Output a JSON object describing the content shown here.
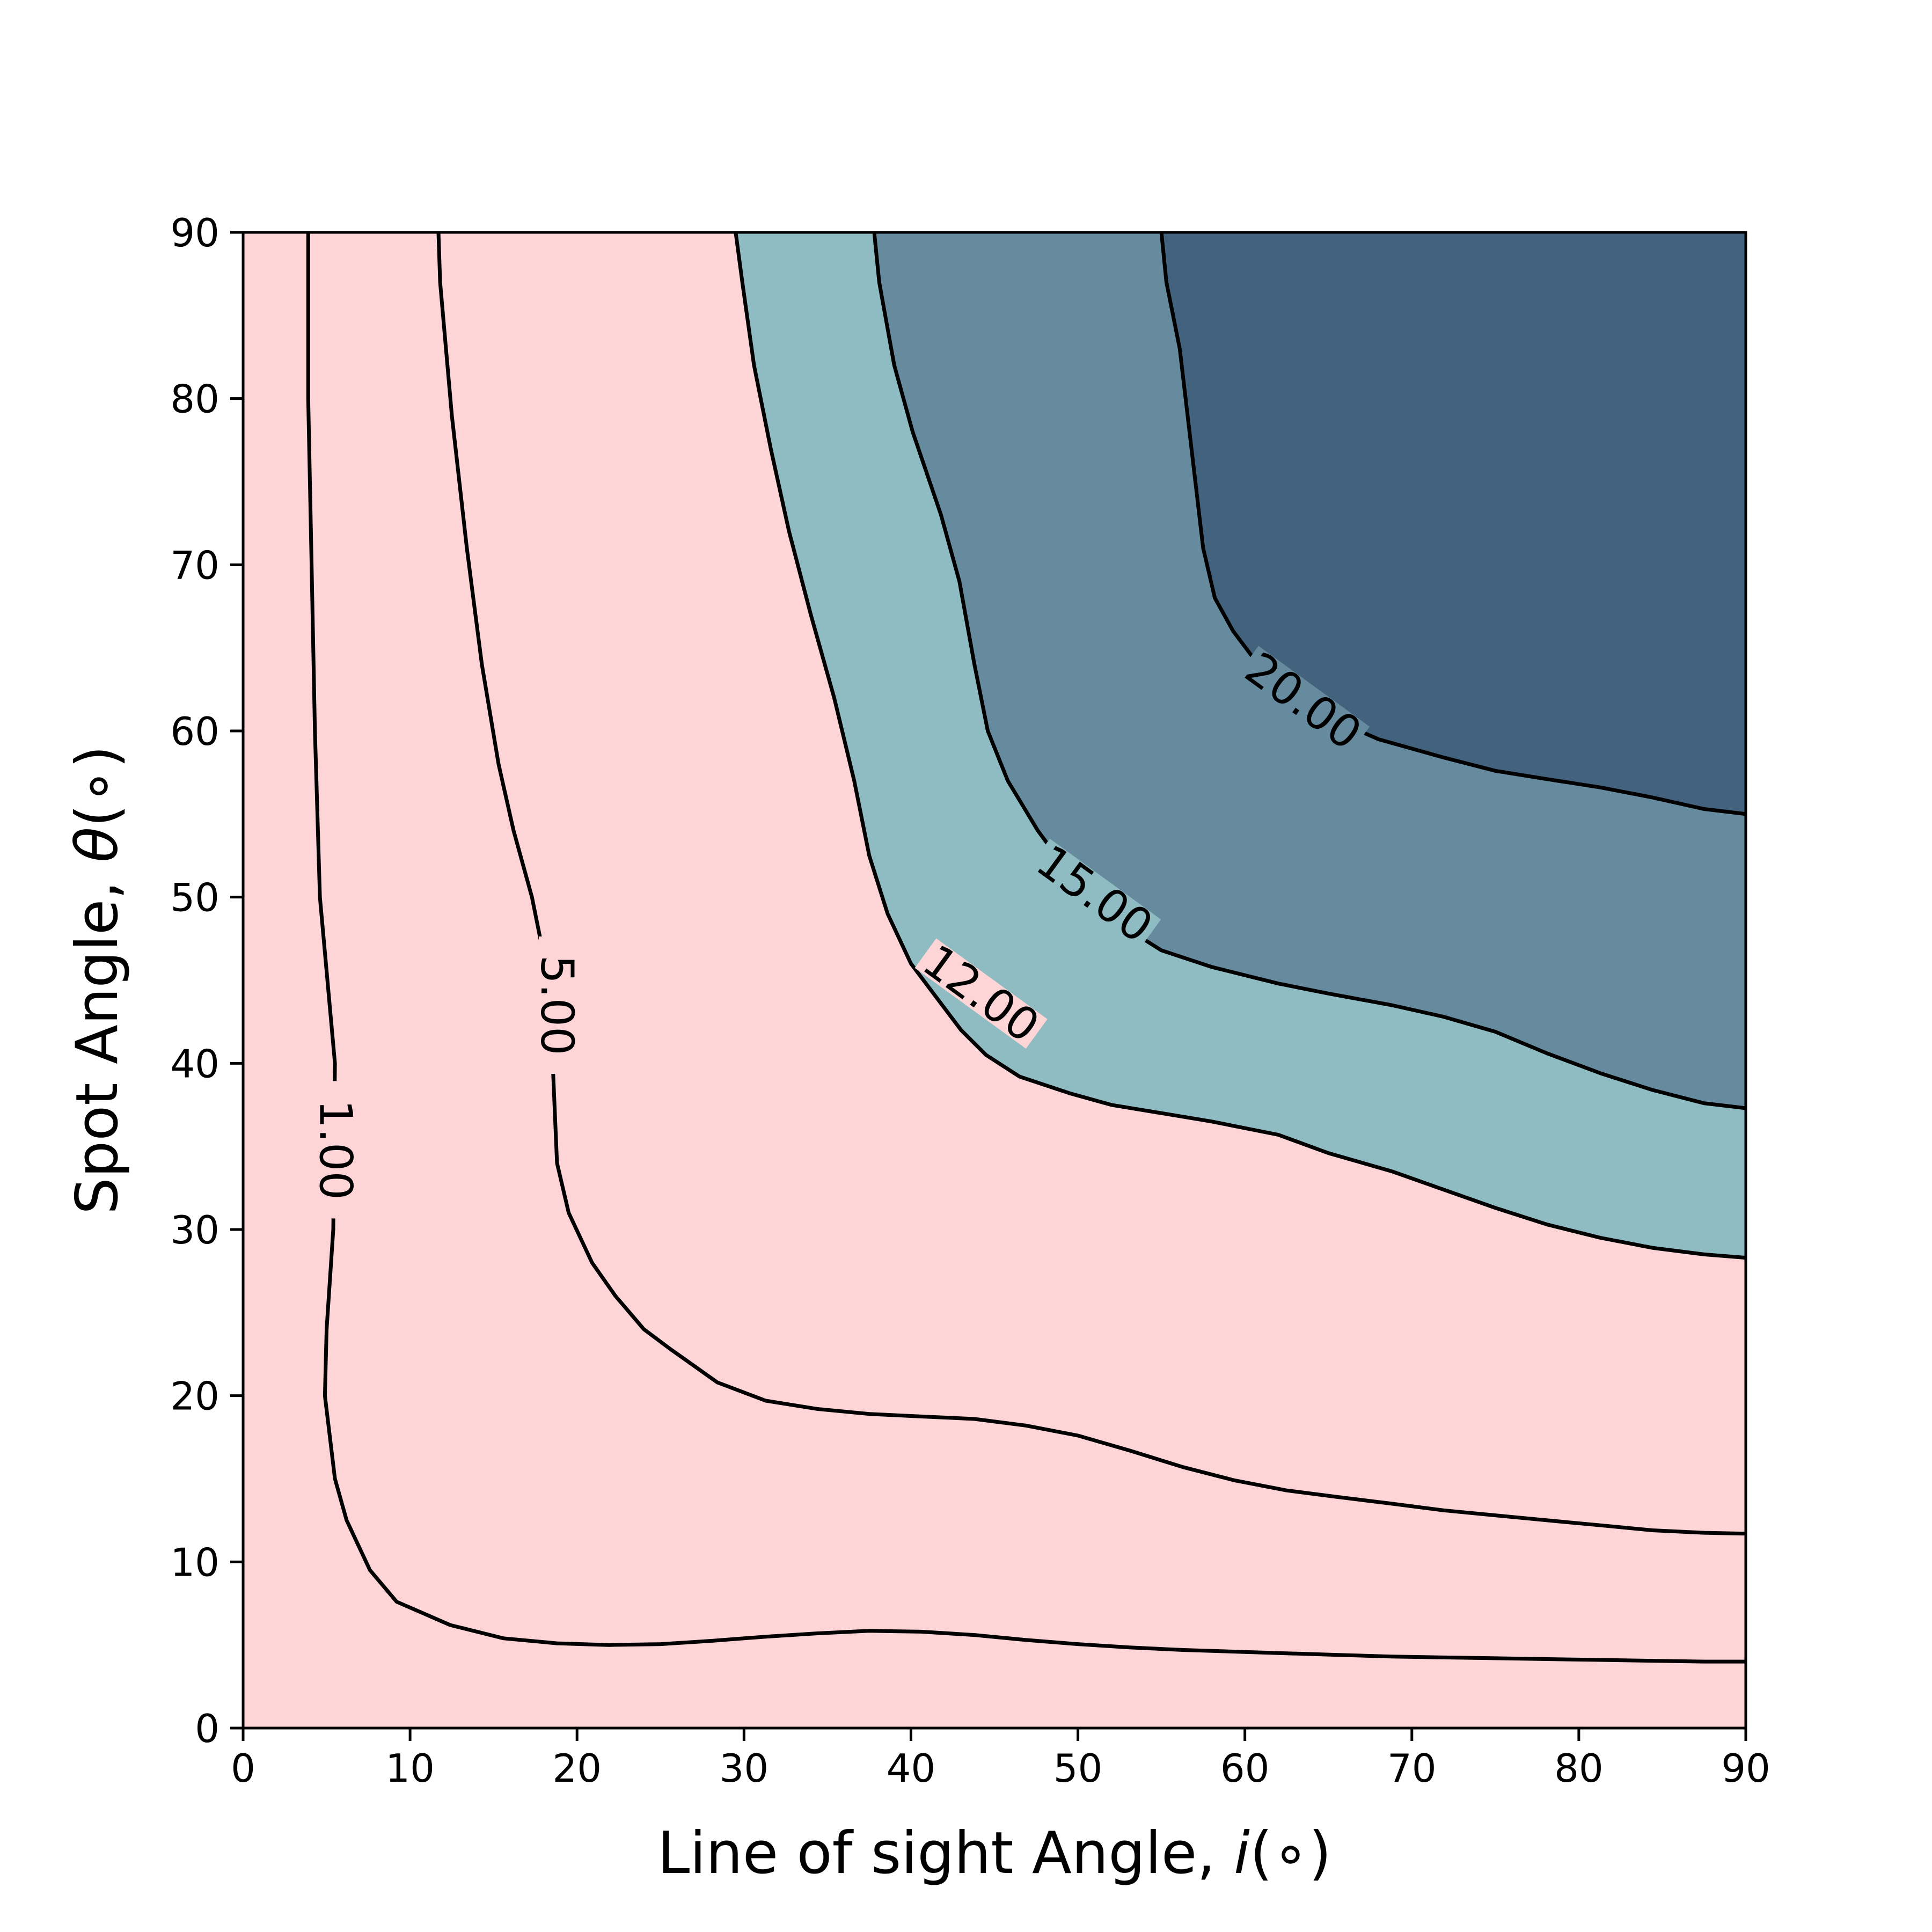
{
  "chart_data": {
    "type": "contour",
    "xlabel_prefix": "Line of sight Angle, ",
    "xlabel_var": "i",
    "xlabel_unit": "(∘)",
    "ylabel_prefix": "Spot Angle, ",
    "ylabel_var": "θ",
    "ylabel_unit": "(∘)",
    "xlim": [
      0,
      90
    ],
    "ylim": [
      0,
      90
    ],
    "xticks": [
      0,
      10,
      20,
      30,
      40,
      50,
      60,
      70,
      80,
      90
    ],
    "yticks": [
      0,
      10,
      20,
      30,
      40,
      50,
      60,
      70,
      80,
      90
    ],
    "grid": false,
    "fill_colors": {
      "below_12": "#fdd5d6",
      "12_to_15": "#8fbcc2",
      "15_to_20": "#678b9e",
      "above_20": "#43627e"
    },
    "line_color": "#000000",
    "levels": [
      {
        "value": 1.0,
        "label": "1.00",
        "points": [
          [
            3.9,
            90
          ],
          [
            3.9,
            80
          ],
          [
            4.1,
            70
          ],
          [
            4.3,
            60
          ],
          [
            4.6,
            50
          ],
          [
            5.5,
            40
          ],
          [
            5.4,
            30
          ],
          [
            5.0,
            24
          ],
          [
            4.9,
            20
          ],
          [
            5.5,
            15
          ],
          [
            6.2,
            12.5
          ],
          [
            7.6,
            9.5
          ],
          [
            9.2,
            7.6
          ],
          [
            12.4,
            6.2
          ],
          [
            15.6,
            5.4
          ],
          [
            18.8,
            5.1
          ],
          [
            21.9,
            5.0
          ],
          [
            25.0,
            5.05
          ],
          [
            28.1,
            5.25
          ],
          [
            31.3,
            5.5
          ],
          [
            34.4,
            5.7
          ],
          [
            37.5,
            5.85
          ],
          [
            40.6,
            5.8
          ],
          [
            43.8,
            5.6
          ],
          [
            46.9,
            5.3
          ],
          [
            50.0,
            5.05
          ],
          [
            53.1,
            4.85
          ],
          [
            56.3,
            4.7
          ],
          [
            59.4,
            4.6
          ],
          [
            62.5,
            4.5
          ],
          [
            65.6,
            4.4
          ],
          [
            68.8,
            4.3
          ],
          [
            71.9,
            4.25
          ],
          [
            75.0,
            4.2
          ],
          [
            78.1,
            4.15
          ],
          [
            81.3,
            4.1
          ],
          [
            84.4,
            4.05
          ],
          [
            87.5,
            4.0
          ],
          [
            90.0,
            4.0
          ]
        ]
      },
      {
        "value": 5.0,
        "label": "5.00",
        "points": [
          [
            11.7,
            90
          ],
          [
            11.8,
            87
          ],
          [
            12.5,
            79
          ],
          [
            13.4,
            71
          ],
          [
            14.3,
            64
          ],
          [
            15.3,
            58
          ],
          [
            16.2,
            54
          ],
          [
            17.3,
            50
          ],
          [
            17.9,
            47
          ],
          [
            18.5,
            44
          ],
          [
            18.5,
            41
          ],
          [
            18.8,
            34
          ],
          [
            19.5,
            31
          ],
          [
            20.9,
            28
          ],
          [
            22.3,
            26
          ],
          [
            24.0,
            24
          ],
          [
            25.6,
            22.8
          ],
          [
            27.0,
            21.8
          ],
          [
            28.4,
            20.8
          ],
          [
            31.3,
            19.7
          ],
          [
            34.4,
            19.2
          ],
          [
            37.5,
            18.9
          ],
          [
            40.6,
            18.75
          ],
          [
            43.8,
            18.6
          ],
          [
            46.9,
            18.2
          ],
          [
            50.0,
            17.6
          ],
          [
            53.1,
            16.7
          ],
          [
            56.3,
            15.7
          ],
          [
            59.4,
            14.9
          ],
          [
            62.5,
            14.3
          ],
          [
            65.6,
            13.9
          ],
          [
            68.8,
            13.5
          ],
          [
            71.9,
            13.1
          ],
          [
            75.0,
            12.8
          ],
          [
            78.1,
            12.5
          ],
          [
            81.3,
            12.2
          ],
          [
            84.4,
            11.9
          ],
          [
            87.5,
            11.75
          ],
          [
            90.0,
            11.7
          ]
        ]
      },
      {
        "value": 12.0,
        "label": "12.00",
        "points": [
          [
            29.5,
            90
          ],
          [
            29.9,
            87
          ],
          [
            30.6,
            82
          ],
          [
            31.6,
            77
          ],
          [
            32.7,
            72
          ],
          [
            34.0,
            67
          ],
          [
            35.4,
            62
          ],
          [
            36.6,
            57
          ],
          [
            37.5,
            52.5
          ],
          [
            38.6,
            49
          ],
          [
            40.0,
            46
          ],
          [
            41.5,
            44
          ],
          [
            43.0,
            42
          ],
          [
            44.5,
            40.5
          ],
          [
            46.5,
            39.2
          ],
          [
            49.5,
            38.2
          ],
          [
            52.0,
            37.5
          ],
          [
            55.0,
            37
          ],
          [
            58.0,
            36.5
          ],
          [
            62.0,
            35.7
          ],
          [
            65.0,
            34.6
          ],
          [
            68.8,
            33.5
          ],
          [
            71.9,
            32.4
          ],
          [
            75.0,
            31.3
          ],
          [
            78.1,
            30.3
          ],
          [
            81.3,
            29.5
          ],
          [
            84.4,
            28.9
          ],
          [
            87.5,
            28.5
          ],
          [
            90.0,
            28.3
          ]
        ]
      },
      {
        "value": 15.0,
        "label": "15.00",
        "points": [
          [
            37.8,
            90
          ],
          [
            38.1,
            87
          ],
          [
            39.0,
            82
          ],
          [
            40.1,
            78
          ],
          [
            41.8,
            73
          ],
          [
            42.9,
            69
          ],
          [
            43.8,
            64
          ],
          [
            44.6,
            60
          ],
          [
            45.8,
            57
          ],
          [
            47.6,
            54
          ],
          [
            49.8,
            51
          ],
          [
            52.3,
            48.5
          ],
          [
            55.0,
            46.8
          ],
          [
            58.0,
            45.8
          ],
          [
            62.0,
            44.8
          ],
          [
            65.0,
            44.2
          ],
          [
            68.8,
            43.5
          ],
          [
            71.9,
            42.8
          ],
          [
            75.0,
            41.9
          ],
          [
            78.1,
            40.6
          ],
          [
            81.3,
            39.4
          ],
          [
            84.4,
            38.4
          ],
          [
            87.5,
            37.6
          ],
          [
            90.0,
            37.3
          ]
        ]
      },
      {
        "value": 20.0,
        "label": "20.00",
        "points": [
          [
            55.0,
            90
          ],
          [
            55.3,
            87
          ],
          [
            56.1,
            83
          ],
          [
            56.8,
            77
          ],
          [
            57.5,
            71
          ],
          [
            58.2,
            68
          ],
          [
            59.3,
            66
          ],
          [
            60.8,
            64
          ],
          [
            62.5,
            62.5
          ],
          [
            64.6,
            61
          ],
          [
            68.0,
            59.5
          ],
          [
            71.9,
            58.4
          ],
          [
            75.0,
            57.6
          ],
          [
            78.1,
            57.1
          ],
          [
            81.3,
            56.6
          ],
          [
            84.4,
            56.0
          ],
          [
            87.5,
            55.3
          ],
          [
            90.0,
            55.0
          ]
        ]
      }
    ]
  }
}
